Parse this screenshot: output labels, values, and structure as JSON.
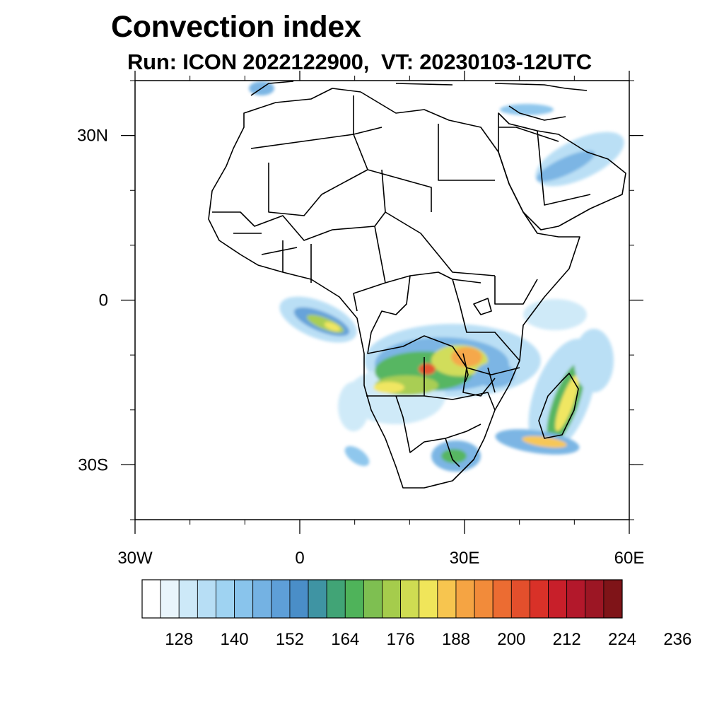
{
  "title": "Convection index",
  "subtitle": "Run: ICON 2022122900,  VT: 20230103-12UTC",
  "map": {
    "lon_range": [
      -30,
      60
    ],
    "lat_range": [
      -40,
      40
    ],
    "lon_ticks": [
      {
        "value": -30,
        "label": "30W"
      },
      {
        "value": 0,
        "label": "0"
      },
      {
        "value": 30,
        "label": "30E"
      },
      {
        "value": 60,
        "label": "60E"
      }
    ],
    "lat_ticks": [
      {
        "value": 30,
        "label": "30N"
      },
      {
        "value": 0,
        "label": "0"
      },
      {
        "value": -30,
        "label": "30S"
      }
    ],
    "minor_lon_step": 10,
    "minor_lat_step": 10
  },
  "colorbar": {
    "colors": [
      "#ffffff",
      "#e9f5fc",
      "#cde9f8",
      "#b7def5",
      "#9fd3f2",
      "#89c4ec",
      "#74b2e3",
      "#5e9fd8",
      "#4a8ec8",
      "#3f94a3",
      "#41a476",
      "#4fb35a",
      "#7ebf51",
      "#a5cc4c",
      "#cfdc52",
      "#f0e55a",
      "#f7c54f",
      "#f5a443",
      "#f28b3a",
      "#ec6c32",
      "#e34f2c",
      "#d93128",
      "#c81f2a",
      "#b3182b",
      "#9c1624",
      "#7f1418"
    ],
    "start_value": 120,
    "step": 4,
    "labels": [
      "128",
      "140",
      "152",
      "164",
      "176",
      "188",
      "200",
      "212",
      "224",
      "236"
    ]
  }
}
